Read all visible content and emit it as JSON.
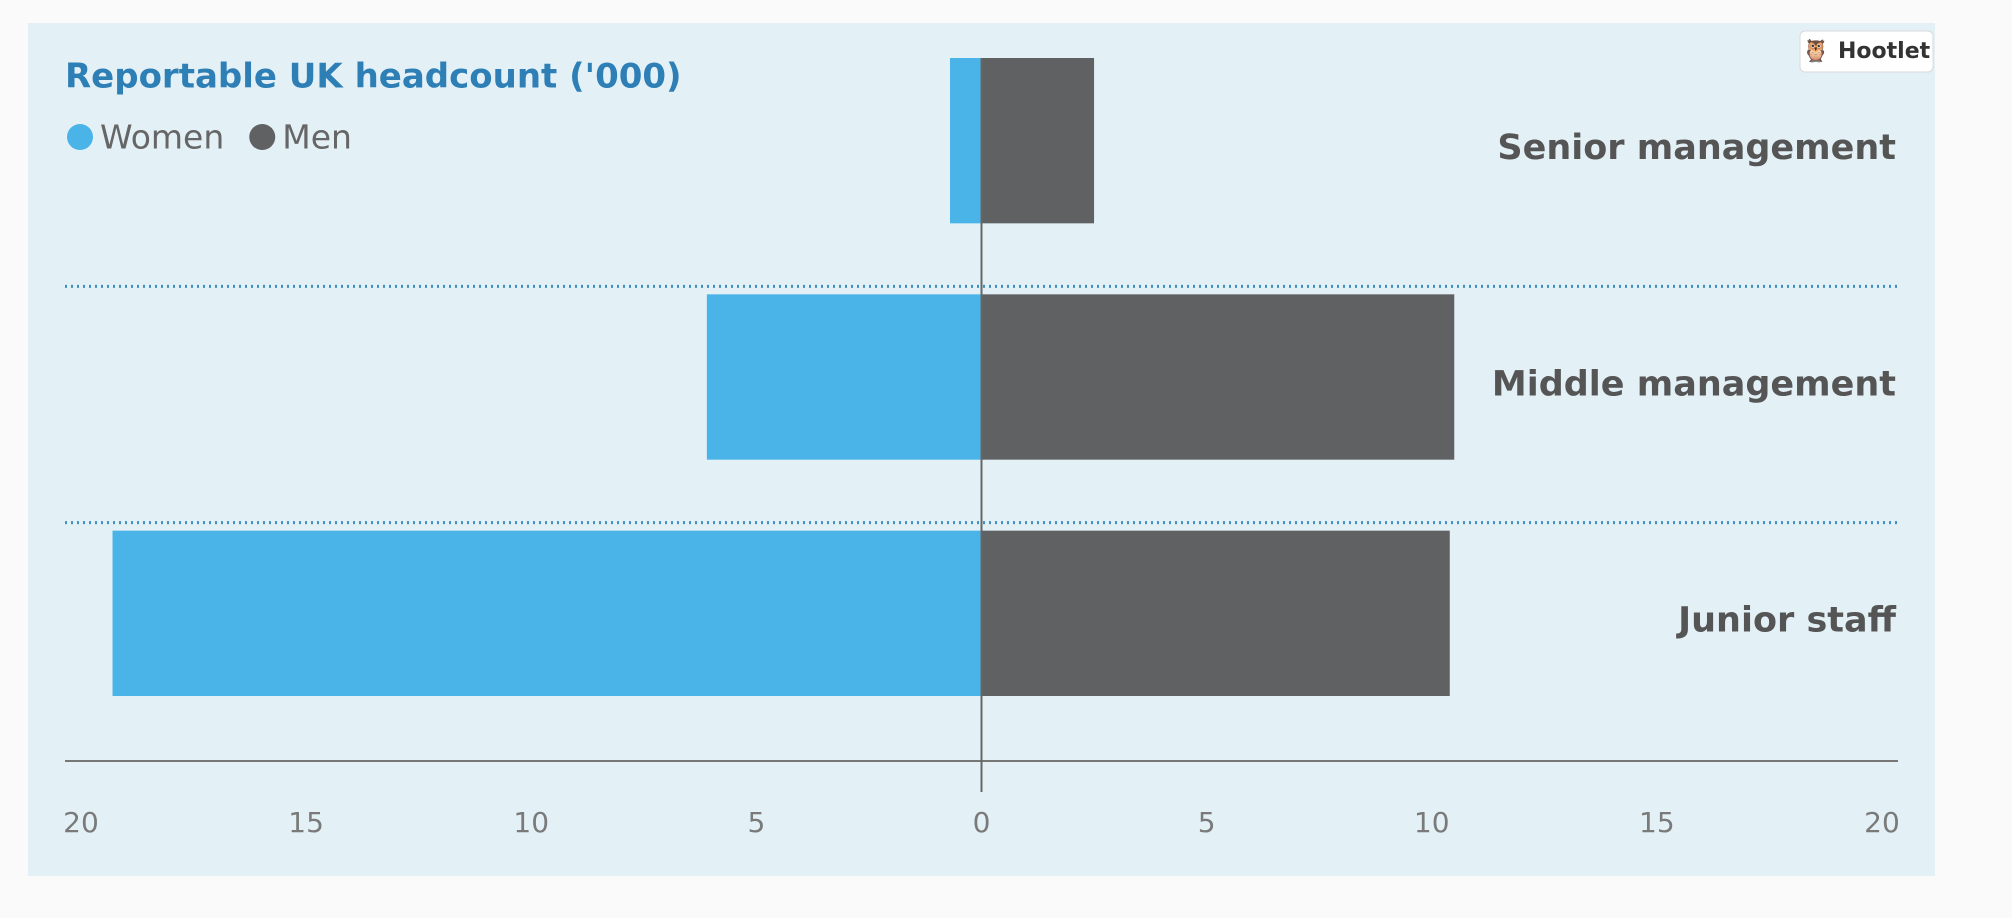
{
  "badge": "Hootlet",
  "chart_data": {
    "type": "butterfly",
    "title": "Reportable UK headcount ('000)",
    "categories": [
      "Senior management",
      "Middle management",
      "Junior staff"
    ],
    "series": [
      {
        "name": "Women",
        "color": "#4ab3e8",
        "values": [
          -0.7,
          -6.1,
          -19.3
        ]
      },
      {
        "name": "Men",
        "color": "#5f6163",
        "values": [
          2.5,
          10.5,
          10.4
        ]
      }
    ],
    "xlim": [
      -20,
      20
    ],
    "xticks": [
      {
        "value": -20,
        "label": "20"
      },
      {
        "value": -15,
        "label": "15"
      },
      {
        "value": -10,
        "label": "10"
      },
      {
        "value": -5,
        "label": "5"
      },
      0,
      5,
      10,
      15,
      20
    ],
    "legend": "top-left"
  }
}
